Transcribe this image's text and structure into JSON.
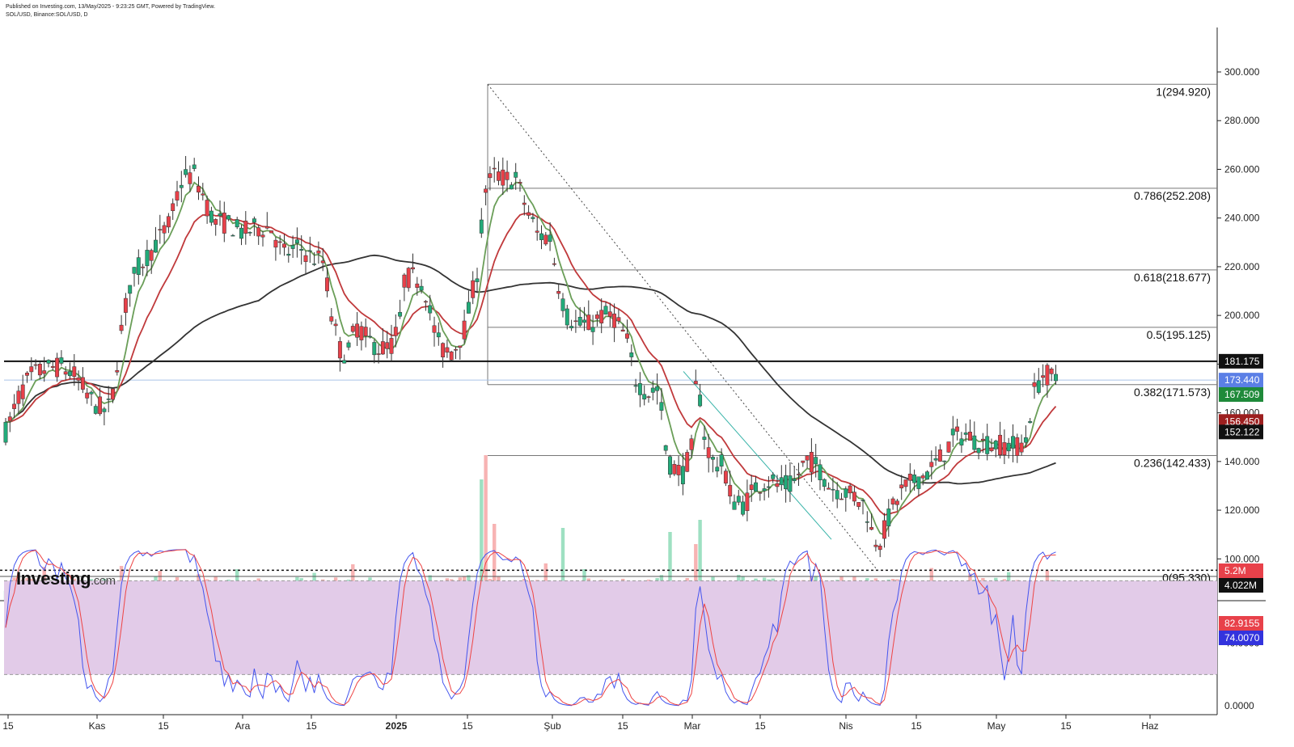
{
  "header": {
    "line1": "Published on Investing.com, 13/May/2025 - 9:23:25 GMT, Powered by TradingView.",
    "line2": "SOL/USD, Binance:SOL/USD, D"
  },
  "logo": {
    "name": "Investing",
    "suffix": ".com"
  },
  "colors": {
    "up": "#22ab7a",
    "down": "#e8414a",
    "ema_fast": "#6a9e58",
    "ema_mid": "#c0393b",
    "sma_long": "#333333",
    "stoch_k": "#4455ee",
    "stoch_d": "#ee4444",
    "stoch_band": "#e2cbe8"
  },
  "chart_data": {
    "type": "candlestick",
    "y_axis": {
      "range": [
        88,
        318
      ],
      "ticks": [
        "300.000",
        "280.000",
        "260.000",
        "240.000",
        "220.000",
        "200.000",
        "180.000",
        "160.000",
        "140.000",
        "120.000",
        "100.000"
      ]
    },
    "x_axis": {
      "ticks": [
        "15",
        "Kas",
        "15",
        "Ara",
        "15",
        "2025",
        "15",
        "Şub",
        "15",
        "Mar",
        "15",
        "Nis",
        "15",
        "May",
        "15",
        "Haz"
      ]
    },
    "price_tags": [
      {
        "value": "181.175",
        "color": "#111111"
      },
      {
        "value": "173.440",
        "color": "#5b7fe6"
      },
      {
        "value": "167.509",
        "color": "#1f8a3a"
      },
      {
        "value": "156.450",
        "color": "#9c1f1f"
      },
      {
        "value": "152.122",
        "color": "#111111"
      }
    ],
    "horizontal_lines": [
      {
        "name": "resistance",
        "value": 181.175
      }
    ],
    "fibonacci": [
      {
        "level": "1",
        "value": 294.92,
        "label": "1(294.920)"
      },
      {
        "level": "0.786",
        "value": 252.208,
        "label": "0.786(252.208)"
      },
      {
        "level": "0.618",
        "value": 218.677,
        "label": "0.618(218.677)"
      },
      {
        "level": "0.5",
        "value": 195.125,
        "label": "0.5(195.125)"
      },
      {
        "level": "0.382",
        "value": 171.573,
        "label": "0.382(171.573)"
      },
      {
        "level": "0.236",
        "value": 142.433,
        "label": "0.236(142.433)"
      },
      {
        "level": "0",
        "value": 95.33,
        "label": "0(95.330)"
      }
    ],
    "volume": {
      "tags": [
        {
          "value": "5.2M",
          "color": "#e8414a"
        },
        {
          "value": "4.022M",
          "color": "#111111"
        }
      ]
    },
    "stochastic": {
      "ticks": [
        "40.0000",
        "0.0000"
      ],
      "band": [
        20,
        80
      ],
      "tags": [
        {
          "value": "82.9155",
          "color": "#e8414a"
        },
        {
          "value": "74.0070",
          "color": "#3333dd"
        }
      ]
    }
  }
}
